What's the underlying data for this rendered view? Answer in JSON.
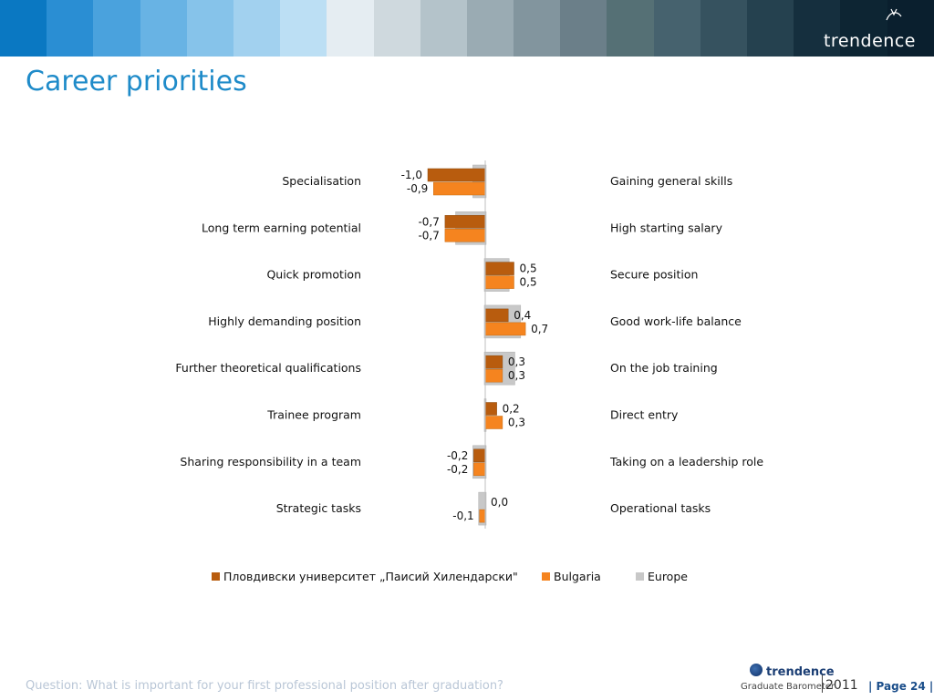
{
  "header": {
    "brand": "trendence",
    "stripe_colors": [
      "#0a78c2",
      "#2a8ed3",
      "#4aa2dd",
      "#68b3e4",
      "#86c3ea",
      "#a2d1ef",
      "#bcdff4",
      "#e5edf2",
      "#cfd9de",
      "#b4c3ca",
      "#9aabb3",
      "#82959e",
      "#6b7f89",
      "#557075",
      "#46626e",
      "#36525f",
      "#25414f",
      "#152f3e",
      "#0d2533",
      "#0a1f2e"
    ]
  },
  "title": "Career priorities",
  "chart_data": {
    "type": "bar",
    "orientation": "horizontal",
    "left_labels": [
      "Specialisation",
      "Long term earning potential",
      "Quick promotion",
      "Highly demanding position",
      "Further theoretical qualifications",
      "Trainee program",
      "Sharing responsibility in a team",
      "Strategic tasks"
    ],
    "right_labels": [
      "Gaining general skills",
      "High starting salary",
      "Secure position",
      "Good work-life balance",
      "On the job training",
      "Direct entry",
      "Taking on a leadership role",
      "Operational tasks"
    ],
    "series": [
      {
        "name": "Пловдивски университет „Паисий Хилендарски\"",
        "color": "#b85c0e",
        "values": [
          -1.0,
          -0.7,
          0.5,
          0.4,
          0.3,
          0.2,
          -0.2,
          0.0
        ],
        "labels": [
          "-1,0",
          "-0,7",
          "0,5",
          "0,4",
          "0,3",
          "0,2",
          "-0,2",
          "0,0"
        ]
      },
      {
        "name": "Bulgaria",
        "color": "#f5841f",
        "values": [
          -0.9,
          -0.7,
          0.5,
          0.7,
          0.3,
          0.3,
          -0.2,
          -0.1
        ],
        "labels": [
          "-0,9",
          "-0,7",
          "0,5",
          "0,7",
          "0,3",
          "0,3",
          "-0,2",
          "-0,1"
        ]
      },
      {
        "name": "Europe",
        "color": "#c8c8c8",
        "values": [
          -0.2,
          -0.5,
          0.4,
          0.6,
          0.5,
          0.0,
          -0.2,
          -0.1
        ],
        "labels": []
      }
    ],
    "legend_position": "bottom",
    "grid": false
  },
  "footer": {
    "question": "Question: What is important for your first professional position after graduation?",
    "logo_name": "trendence",
    "logo_sub": "Graduate Barometer",
    "logo_year": "2011",
    "page": "| Page 24 |"
  }
}
